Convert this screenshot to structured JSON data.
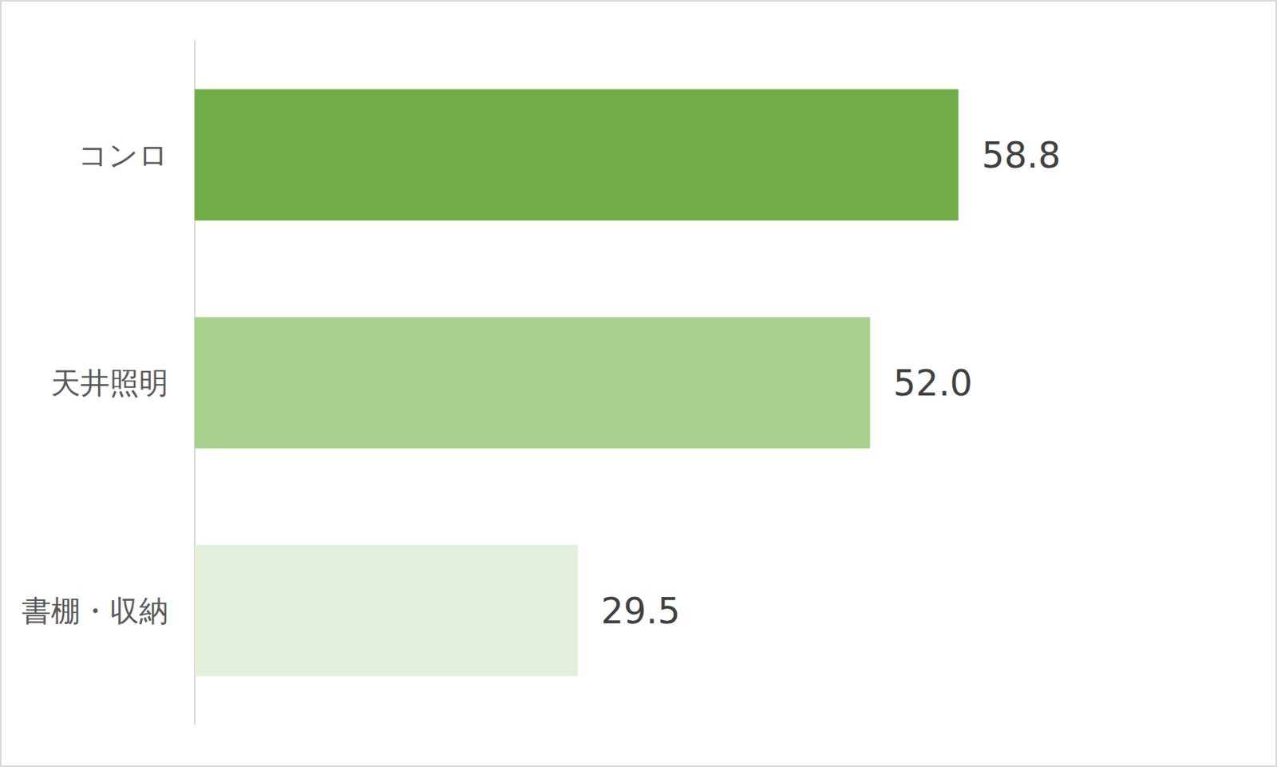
{
  "chart_data": {
    "type": "bar",
    "orientation": "horizontal",
    "categories": [
      "コンロ",
      "天井照明",
      "書棚・収納"
    ],
    "values": [
      58.8,
      52.0,
      29.5
    ],
    "value_labels": [
      "58.8",
      "52.0",
      "29.5"
    ],
    "colors": [
      "#70ad47",
      "#a9d18e",
      "#e2efda"
    ],
    "xlim": [
      0,
      70
    ],
    "xticks": [
      0,
      10,
      20,
      30,
      40,
      50,
      60,
      70
    ],
    "grid": false,
    "data_labels": true,
    "tick_labels": "y"
  }
}
